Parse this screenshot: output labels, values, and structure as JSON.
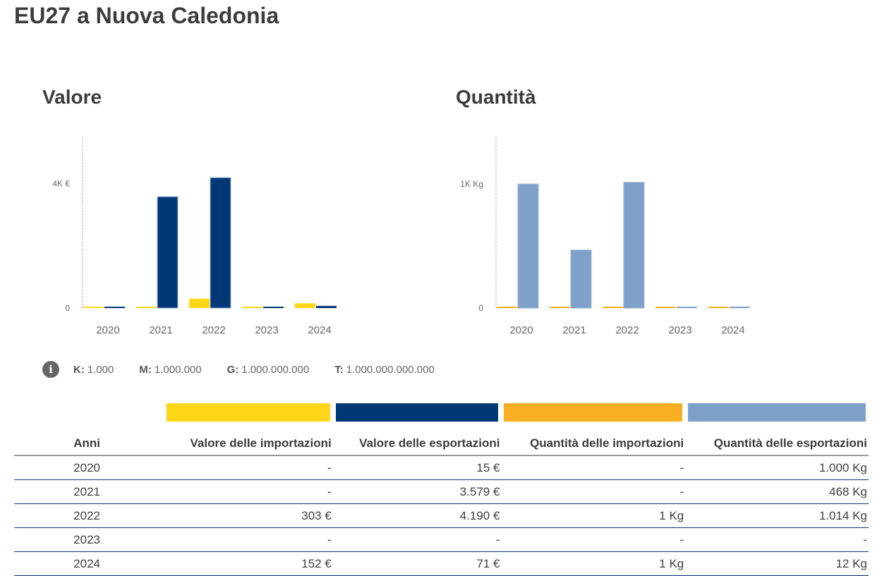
{
  "title": "EU27 a Nuova Caledonia",
  "info": {
    "k_label": "K:",
    "k": "1.000",
    "m_label": "M:",
    "m": "1.000.000",
    "g_label": "G:",
    "g": "1.000.000.000",
    "t_label": "T:",
    "t": "1.000.000.000.000"
  },
  "colors": {
    "imp_val": "#ffd617",
    "exp_val": "#003776",
    "imp_qty": "#f8ae21",
    "exp_qty": "#7fa1c9"
  },
  "table": {
    "headers": [
      "Anni",
      "Valore delle importazioni",
      "Valore delle esportazioni",
      "Quantità delle importazioni",
      "Quantità delle esportazioni"
    ],
    "rows": [
      [
        "2020",
        "-",
        "15 €",
        "-",
        "1.000 Kg"
      ],
      [
        "2021",
        "-",
        "3.579 €",
        "-",
        "468 Kg"
      ],
      [
        "2022",
        "303 €",
        "4.190 €",
        "1 Kg",
        "1.014 Kg"
      ],
      [
        "2023",
        "-",
        "-",
        "-",
        "-"
      ],
      [
        "2024",
        "152 €",
        "71 €",
        "1 Kg",
        "12 Kg"
      ]
    ]
  },
  "chart_data": [
    {
      "type": "bar",
      "title": "Valore",
      "categories": [
        "2020",
        "2021",
        "2022",
        "2023",
        "2024"
      ],
      "ytick_labels": [
        "0",
        "4K €"
      ],
      "yticks": [
        0,
        4000
      ],
      "series": [
        {
          "name": "Valore delle importazioni",
          "color": "#ffd617",
          "values": [
            0,
            0,
            303,
            0,
            152
          ]
        },
        {
          "name": "Valore delle esportazioni",
          "color": "#003776",
          "values": [
            15,
            3579,
            4190,
            0,
            71
          ]
        }
      ]
    },
    {
      "type": "bar",
      "title": "Quantità",
      "categories": [
        "2020",
        "2021",
        "2022",
        "2023",
        "2024"
      ],
      "ytick_labels": [
        "0",
        "1K Kg"
      ],
      "yticks": [
        0,
        1000
      ],
      "series": [
        {
          "name": "Quantità delle importazioni",
          "color": "#f8ae21",
          "values": [
            0,
            0,
            1,
            0,
            1
          ]
        },
        {
          "name": "Quantità delle esportazioni",
          "color": "#7fa1c9",
          "values": [
            1000,
            468,
            1014,
            0,
            12
          ]
        }
      ]
    }
  ]
}
